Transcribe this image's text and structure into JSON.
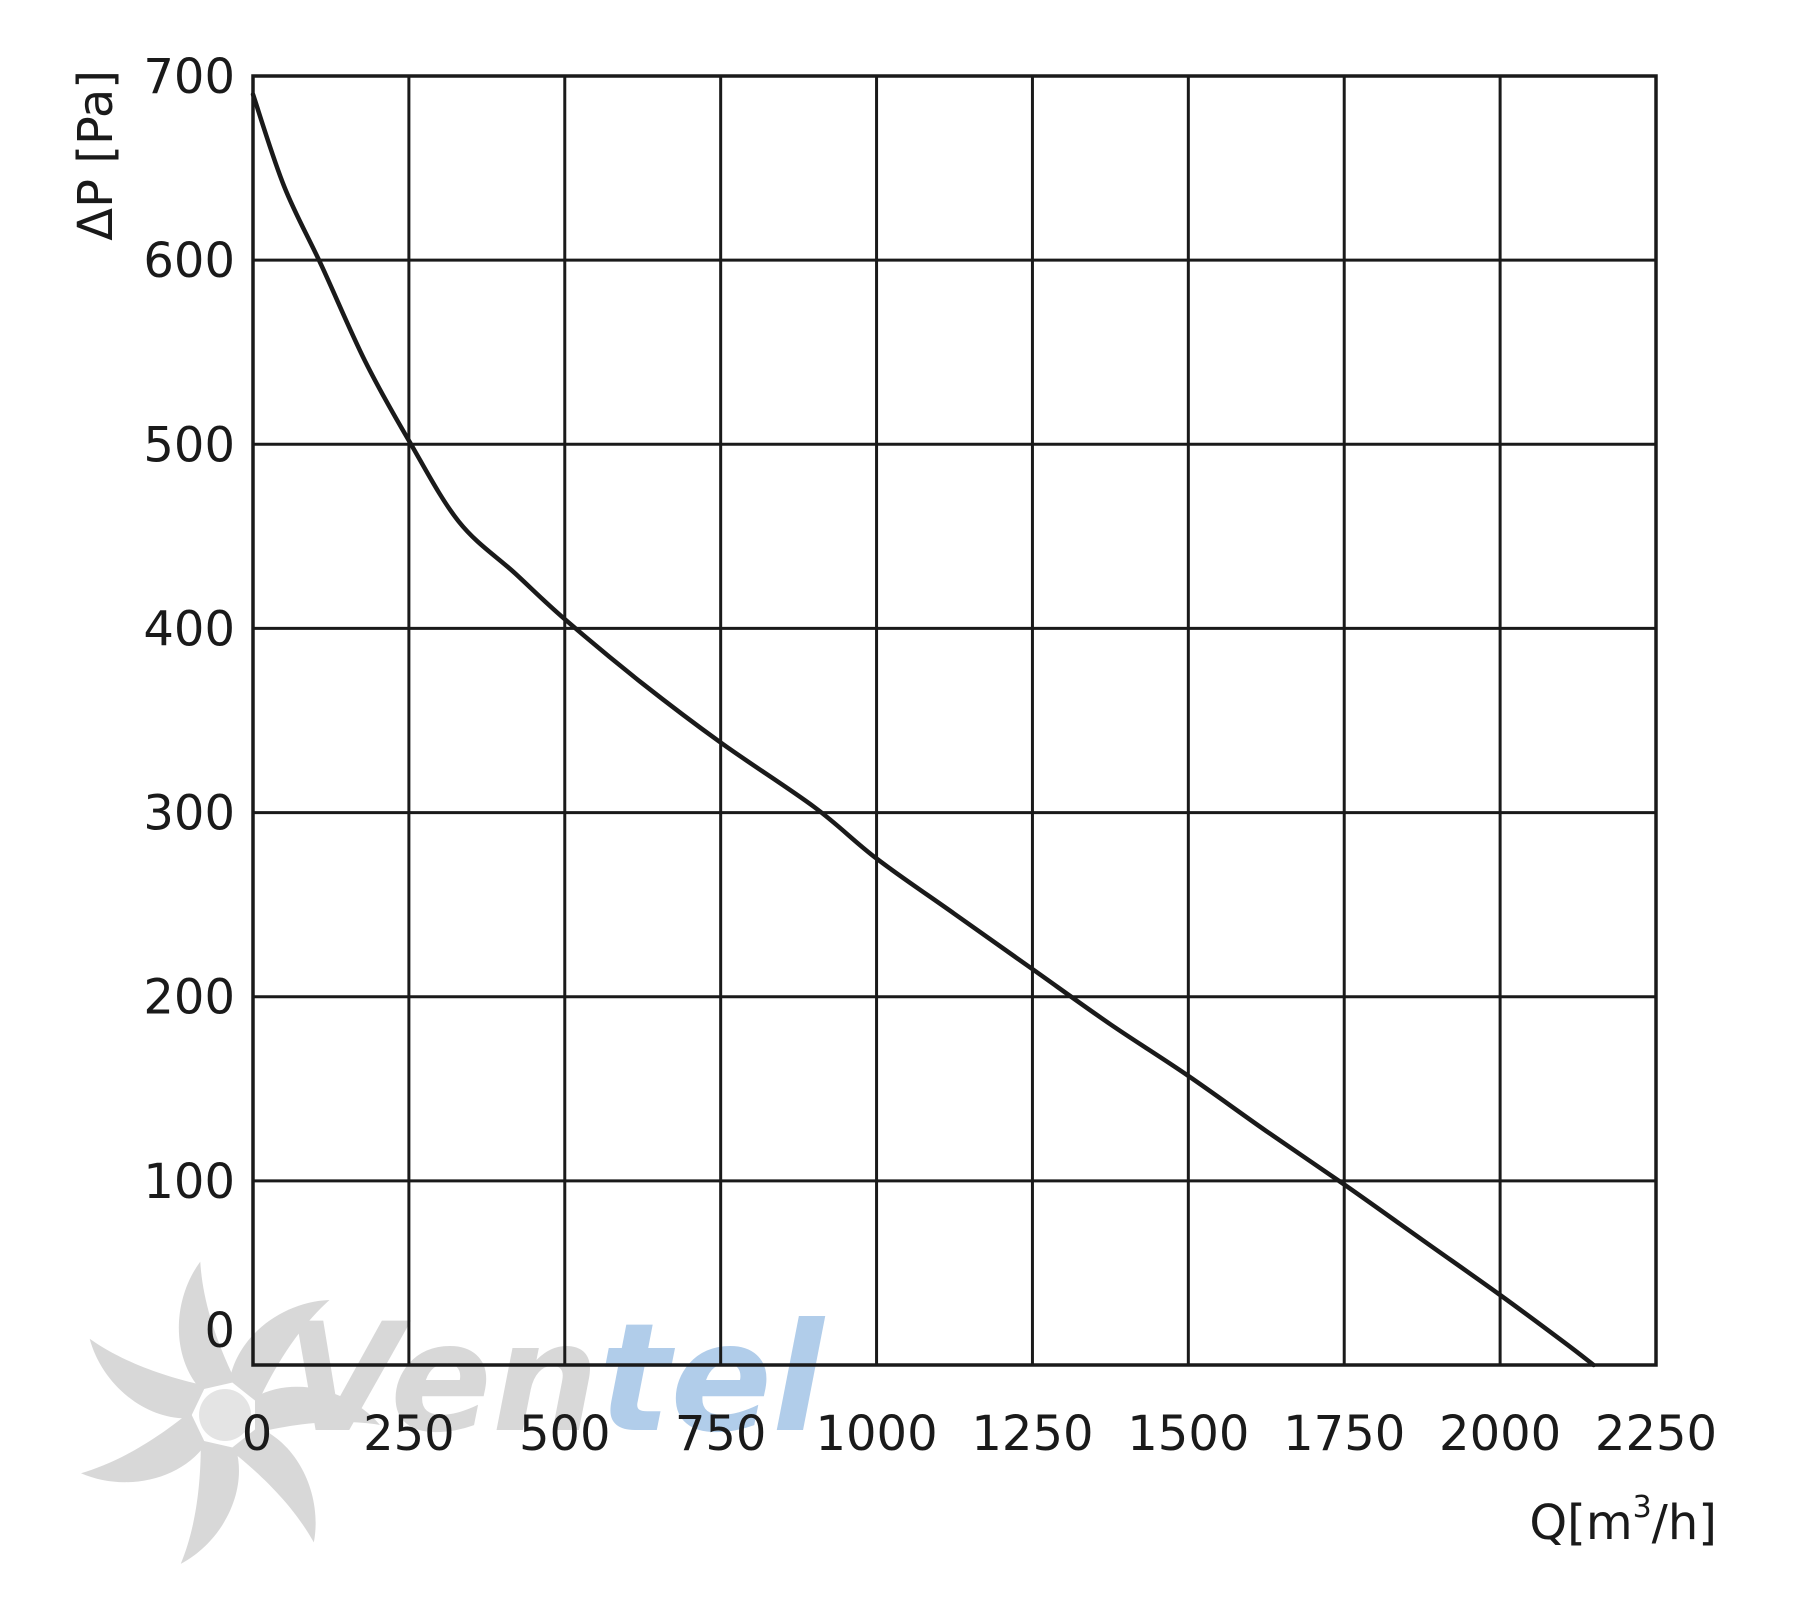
{
  "chart_data": {
    "type": "line",
    "xlabel": {
      "prefix": "Q[m",
      "superscript": "3",
      "suffix": "/h]"
    },
    "ylabel": "ΔP [Pa]",
    "xlim": [
      0,
      2250
    ],
    "ylim": [
      0,
      700
    ],
    "x_ticks": [
      0,
      250,
      500,
      750,
      1000,
      1250,
      1500,
      1750,
      2000,
      2250
    ],
    "y_ticks": [
      0,
      100,
      200,
      300,
      400,
      500,
      600,
      700
    ],
    "grid": true,
    "series": [
      {
        "color": "#1a1a1a",
        "points": [
          [
            0,
            690
          ],
          [
            50,
            640
          ],
          [
            110,
            597
          ],
          [
            180,
            545
          ],
          [
            250,
            502
          ],
          [
            330,
            458
          ],
          [
            420,
            430
          ],
          [
            500,
            405
          ],
          [
            625,
            370
          ],
          [
            750,
            338
          ],
          [
            900,
            303
          ],
          [
            1000,
            275
          ],
          [
            1125,
            245
          ],
          [
            1250,
            215
          ],
          [
            1375,
            185
          ],
          [
            1500,
            157
          ],
          [
            1625,
            127
          ],
          [
            1750,
            98
          ],
          [
            1875,
            68
          ],
          [
            2000,
            38
          ],
          [
            2100,
            13
          ],
          [
            2150,
            0
          ]
        ]
      }
    ]
  },
  "watermark": {
    "text_part1": "Ven",
    "text_part2": "tel",
    "color_gray": "#d4d4d4",
    "color_blue": "#a9c8e8",
    "icon": "fan-blade-icon"
  }
}
